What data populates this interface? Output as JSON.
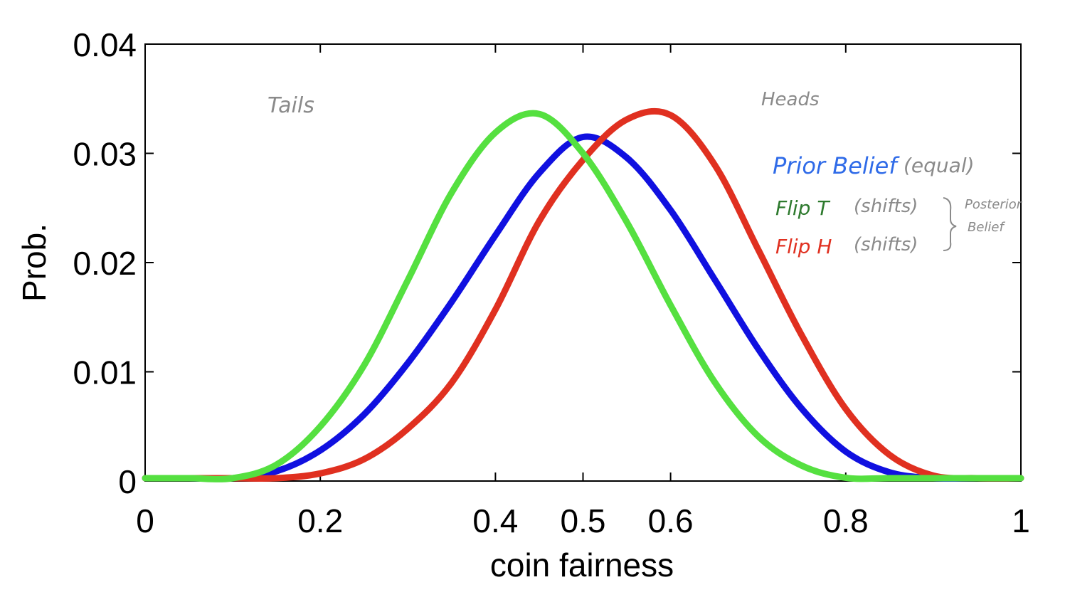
{
  "chart_data": {
    "type": "line",
    "xlabel": "coin fairness",
    "ylabel": "Prob.",
    "xlim": [
      0,
      1
    ],
    "ylim": [
      0,
      0.04
    ],
    "x_ticks": [
      "0",
      "0.2",
      "0.4",
      "0.5",
      "0.6",
      "0.8",
      "1"
    ],
    "y_ticks": [
      "0",
      "0.01",
      "0.02",
      "0.03",
      "0.04"
    ],
    "grid": false,
    "x": [
      0,
      0.05,
      0.1,
      0.15,
      0.2,
      0.25,
      0.3,
      0.35,
      0.4,
      0.45,
      0.5,
      0.55,
      0.6,
      0.65,
      0.7,
      0.75,
      0.8,
      0.85,
      0.9,
      0.95,
      1.0
    ],
    "series": [
      {
        "color": "#1010e0",
        "values": [
          0,
          0,
          0.0001,
          0.0009,
          0.0028,
          0.0061,
          0.0108,
          0.0164,
          0.0225,
          0.0282,
          0.0315,
          0.0296,
          0.0248,
          0.0185,
          0.0121,
          0.0066,
          0.0027,
          0.0008,
          0.0001,
          0,
          0
        ]
      },
      {
        "color": "#e03020",
        "values": [
          0,
          0,
          0,
          0.0001,
          0.0007,
          0.002,
          0.0048,
          0.009,
          0.0157,
          0.0238,
          0.0294,
          0.0331,
          0.0335,
          0.029,
          0.0212,
          0.0133,
          0.0066,
          0.0024,
          0.0005,
          0,
          0
        ]
      },
      {
        "color": "#55e040",
        "values": [
          0,
          0,
          0.0002,
          0.0015,
          0.005,
          0.0106,
          0.0184,
          0.0264,
          0.0319,
          0.0336,
          0.03,
          0.0237,
          0.0161,
          0.0091,
          0.0041,
          0.0014,
          0.0003,
          0,
          0,
          0,
          0
        ]
      }
    ]
  },
  "annotations": {
    "tails": "Tails",
    "heads": "Heads",
    "prior_label": "Prior Belief",
    "prior_note": "(equal)",
    "flip_t_label": "Flip T",
    "flip_t_note": "(shifts)",
    "flip_h_label": "Flip H",
    "flip_h_note": "(shifts)",
    "posterior_line1": "Posterior",
    "posterior_line2": "Belief"
  },
  "colors": {
    "annotation_gray": "#8a8a8a",
    "prior_blue": "#2f6be8",
    "flip_t_green": "#2e7a2e",
    "flip_h_red": "#e03020"
  }
}
